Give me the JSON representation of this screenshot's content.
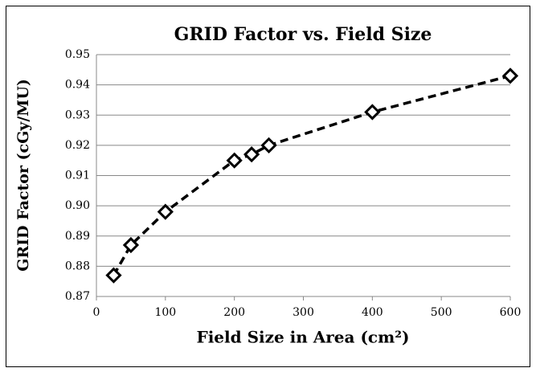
{
  "chart_data": {
    "type": "scatter",
    "title": "GRID Factor vs. Field Size",
    "x_label": "Field Size in Area  (cm²)",
    "y_label": "GRID Factor (cGy/MU)",
    "x": [
      25,
      50,
      100,
      200,
      225,
      250,
      400,
      600
    ],
    "values": [
      0.877,
      0.887,
      0.898,
      0.915,
      0.917,
      0.92,
      0.931,
      0.943
    ],
    "color": "#000000",
    "line_style": "dashed",
    "marker": "diamond",
    "xlim": [
      0,
      600
    ],
    "xticks": [
      0,
      100,
      200,
      300,
      400,
      500,
      600
    ],
    "ylim": [
      0.87,
      0.95
    ],
    "yticks": [
      0.87,
      0.88,
      0.89,
      {
        "value": 0.9,
        "label": "0.90"
      },
      0.91,
      0.92,
      0.93,
      0.94,
      0.95
    ],
    "grid": true
  }
}
